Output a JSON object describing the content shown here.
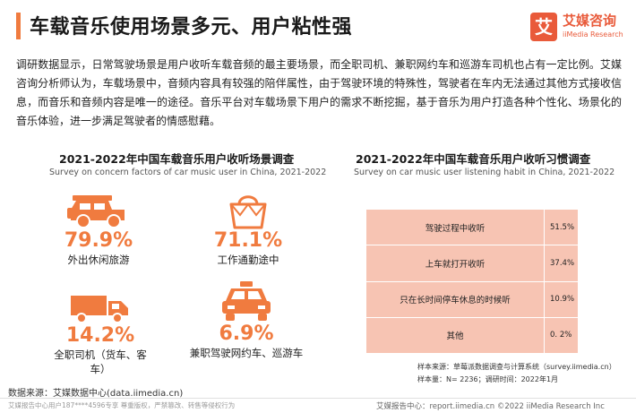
{
  "header": {
    "title": "车载音乐使用场景多元、用户粘性强",
    "brand_name": "艾媒咨询",
    "brand_mark": "艾",
    "brand_en": "iiMedia Research"
  },
  "intro": "调研数据显示，日常驾驶场景是用户收听车载音频的最主要场景，而全职司机、兼职网约车和巡游车司机也占有一定比例。艾媒咨询分析师认为，车载场景中，音频内容具有较强的陪伴属性，由于驾驶环境的特殊性，驾驶者在车内无法通过其他方式接收信息，而音乐和音频内容是唯一的途径。音乐平台对车载场景下用户的需求不断挖掘，基于音乐为用户打造各种个性化、场景化的音乐体验，进一步满足驾驶者的情感慰藉。",
  "left_section": {
    "title_cn": "2021-2022年中国车载音乐用户收听场景调查",
    "title_en": "Survey on concern factors of car music user in China, 2021-2022",
    "stats": [
      {
        "value": "79.9%",
        "label": "外出休闲旅游",
        "icon": "jeep-icon"
      },
      {
        "value": "71.1%",
        "label": "工作通勤途中",
        "icon": "handbag-icon"
      },
      {
        "value": "14.2%",
        "label_line1": "全职司机（货车、客",
        "label_line2": "车）",
        "icon": "truck-icon"
      },
      {
        "value": "6.9%",
        "label": "兼职驾驶网约车、巡游车",
        "icon": "taxi-icon"
      }
    ]
  },
  "right_section": {
    "title_cn": "2021-2022年中国车载音乐用户收听习惯调查",
    "title_en": "Survey on car music user listening habit in China, 2021-2022",
    "rows": [
      {
        "name": "驾驶过程中收听",
        "value": "51.5%"
      },
      {
        "name": "上车就打开收听",
        "value": "37.4%"
      },
      {
        "name": "只在长时间停车休息的时候听",
        "value": "10.9%"
      },
      {
        "name": "其他",
        "value": "0. 2%"
      }
    ],
    "note_source": "样本来源：草莓派数据调查与计算系统（survey.iimedia.cn）",
    "note_sample": "样本量：N= 2236；调研时间：2022年1月"
  },
  "footer": {
    "data_source": "数据来源：艾媒数据中心(data.iimedia.cn)",
    "left_watermark": "艾媒报告中心用户187****4596专享 尊重版权，严禁篡改、转售等侵权行为",
    "right": "艾媒报告中心：report.iimedia.cn ©2022  iiMedia Research  Inc"
  },
  "colors": {
    "accent": "#f07b3f",
    "brand": "#e95a3a",
    "table_bg": "#f7c4b3"
  }
}
